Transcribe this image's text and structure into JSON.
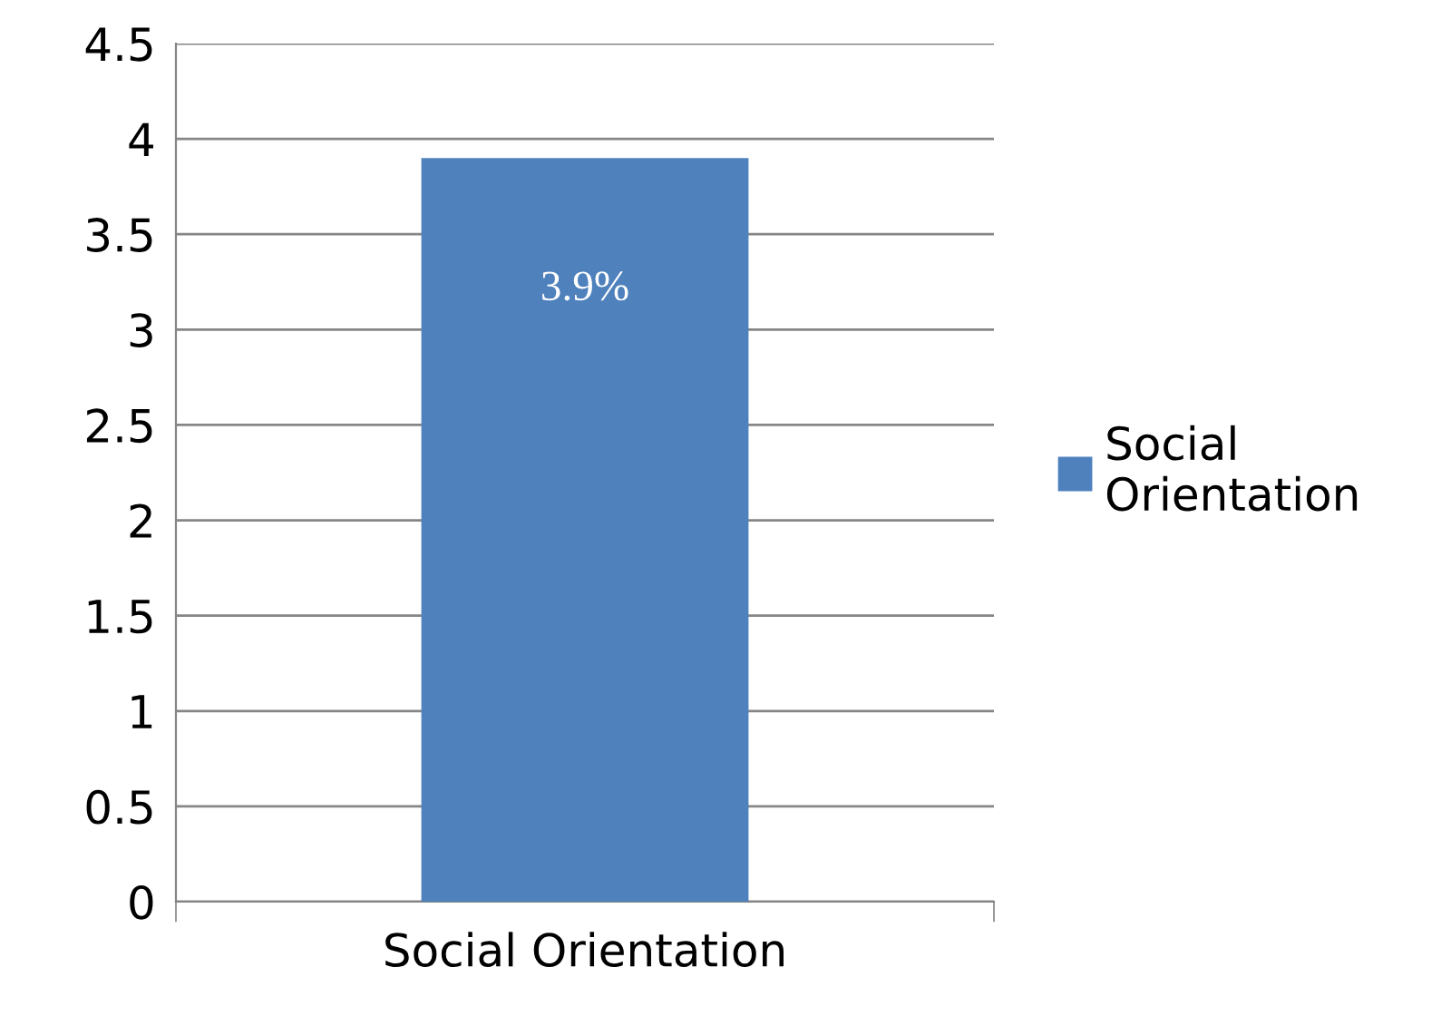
{
  "chart_data": {
    "type": "bar",
    "categories": [
      "Social Orientation"
    ],
    "series": [
      {
        "name": "Social Orientation",
        "color": "#4f81bd",
        "values": [
          3.9
        ],
        "value_labels": [
          "3.9%"
        ]
      }
    ],
    "ylim": [
      0,
      4.5
    ],
    "yticks": [
      0,
      0.5,
      1,
      1.5,
      2,
      2.5,
      3,
      3.5,
      4,
      4.5
    ],
    "grid": "y",
    "legend": "right"
  }
}
